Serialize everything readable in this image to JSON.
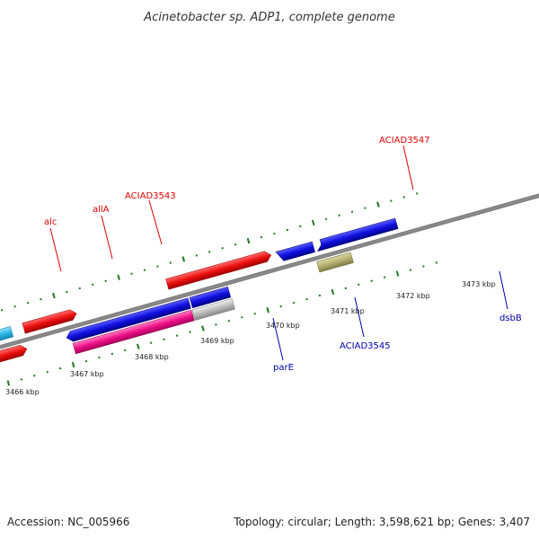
{
  "title": "Acinetobacter sp. ADP1, complete genome",
  "footer": {
    "accession": "Accession: NC_005966",
    "summary": "Topology: circular; Length: 3,598,621 bp; Genes: 3,407"
  },
  "colors": {
    "backbone": "#888888",
    "ticks": "#1e7a1e",
    "forward_label": "#dd0000",
    "reverse_label": "#0000aa"
  },
  "scale": {
    "tick_labels": [
      "3466 kbp",
      "3467 kbp",
      "3468 kbp",
      "3469 kbp",
      "3470 kbp",
      "3471 kbp",
      "3472 kbp",
      "3473 kbp"
    ]
  },
  "genes": [
    {
      "id": "alc",
      "label": "alc",
      "strand": "forward",
      "color": "#2ab8e8"
    },
    {
      "id": "allA",
      "label": "allA",
      "strand": "forward",
      "color": "#2ab8e8"
    },
    {
      "id": "ACIAD3543",
      "label": "ACIAD3543",
      "strand": "forward",
      "color": "#ee1111"
    },
    {
      "id": "ACIAD3547",
      "label": "ACIAD3547",
      "strand": "forward",
      "color": "#ee1111"
    },
    {
      "id": "parE",
      "label": "parE",
      "strand": "reverse",
      "color": "#ee1188"
    },
    {
      "id": "ACIAD3545",
      "label": "ACIAD3545",
      "strand": "reverse",
      "color": "#bbbbbb"
    },
    {
      "id": "dsbB",
      "label": "dsbB",
      "strand": "reverse",
      "color": "#b5b070"
    }
  ]
}
